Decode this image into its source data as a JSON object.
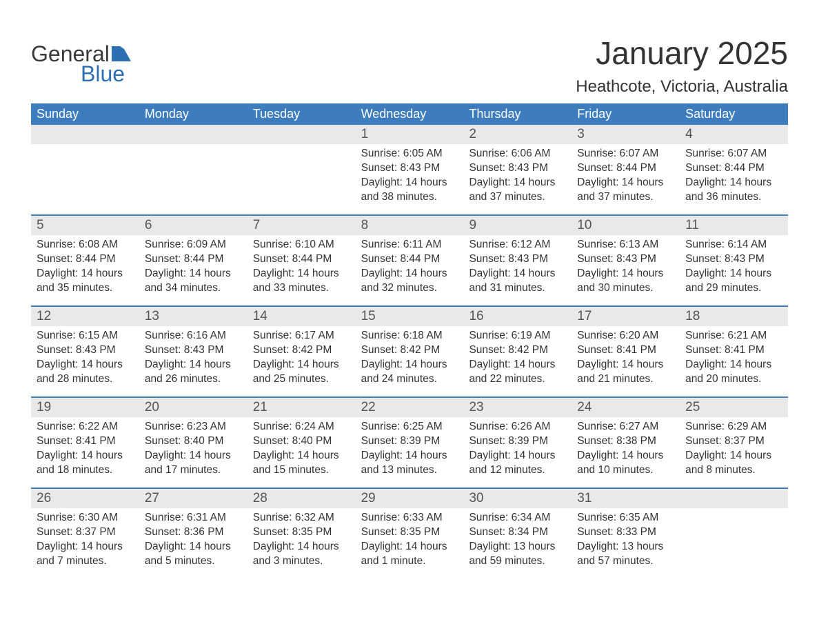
{
  "logo": {
    "text_general": "General",
    "text_blue": "Blue",
    "shape_color": "#2d6fb3",
    "general_color": "#3a3a3a"
  },
  "header": {
    "month_title": "January 2025",
    "location": "Heathcote, Victoria, Australia",
    "title_color": "#333333",
    "title_fontsize": 46,
    "location_fontsize": 24
  },
  "calendar": {
    "header_bg": "#3e7dbd",
    "header_text_color": "#ffffff",
    "daynum_bg": "#e9e9e9",
    "border_color": "#3e7dbd",
    "text_color": "#333333",
    "weekdays": [
      "Sunday",
      "Monday",
      "Tuesday",
      "Wednesday",
      "Thursday",
      "Friday",
      "Saturday"
    ],
    "weeks": [
      [
        {
          "empty": true
        },
        {
          "empty": true
        },
        {
          "empty": true
        },
        {
          "day": "1",
          "sunrise": "Sunrise: 6:05 AM",
          "sunset": "Sunset: 8:43 PM",
          "daylight1": "Daylight: 14 hours",
          "daylight2": "and 38 minutes."
        },
        {
          "day": "2",
          "sunrise": "Sunrise: 6:06 AM",
          "sunset": "Sunset: 8:43 PM",
          "daylight1": "Daylight: 14 hours",
          "daylight2": "and 37 minutes."
        },
        {
          "day": "3",
          "sunrise": "Sunrise: 6:07 AM",
          "sunset": "Sunset: 8:44 PM",
          "daylight1": "Daylight: 14 hours",
          "daylight2": "and 37 minutes."
        },
        {
          "day": "4",
          "sunrise": "Sunrise: 6:07 AM",
          "sunset": "Sunset: 8:44 PM",
          "daylight1": "Daylight: 14 hours",
          "daylight2": "and 36 minutes."
        }
      ],
      [
        {
          "day": "5",
          "sunrise": "Sunrise: 6:08 AM",
          "sunset": "Sunset: 8:44 PM",
          "daylight1": "Daylight: 14 hours",
          "daylight2": "and 35 minutes."
        },
        {
          "day": "6",
          "sunrise": "Sunrise: 6:09 AM",
          "sunset": "Sunset: 8:44 PM",
          "daylight1": "Daylight: 14 hours",
          "daylight2": "and 34 minutes."
        },
        {
          "day": "7",
          "sunrise": "Sunrise: 6:10 AM",
          "sunset": "Sunset: 8:44 PM",
          "daylight1": "Daylight: 14 hours",
          "daylight2": "and 33 minutes."
        },
        {
          "day": "8",
          "sunrise": "Sunrise: 6:11 AM",
          "sunset": "Sunset: 8:44 PM",
          "daylight1": "Daylight: 14 hours",
          "daylight2": "and 32 minutes."
        },
        {
          "day": "9",
          "sunrise": "Sunrise: 6:12 AM",
          "sunset": "Sunset: 8:43 PM",
          "daylight1": "Daylight: 14 hours",
          "daylight2": "and 31 minutes."
        },
        {
          "day": "10",
          "sunrise": "Sunrise: 6:13 AM",
          "sunset": "Sunset: 8:43 PM",
          "daylight1": "Daylight: 14 hours",
          "daylight2": "and 30 minutes."
        },
        {
          "day": "11",
          "sunrise": "Sunrise: 6:14 AM",
          "sunset": "Sunset: 8:43 PM",
          "daylight1": "Daylight: 14 hours",
          "daylight2": "and 29 minutes."
        }
      ],
      [
        {
          "day": "12",
          "sunrise": "Sunrise: 6:15 AM",
          "sunset": "Sunset: 8:43 PM",
          "daylight1": "Daylight: 14 hours",
          "daylight2": "and 28 minutes."
        },
        {
          "day": "13",
          "sunrise": "Sunrise: 6:16 AM",
          "sunset": "Sunset: 8:43 PM",
          "daylight1": "Daylight: 14 hours",
          "daylight2": "and 26 minutes."
        },
        {
          "day": "14",
          "sunrise": "Sunrise: 6:17 AM",
          "sunset": "Sunset: 8:42 PM",
          "daylight1": "Daylight: 14 hours",
          "daylight2": "and 25 minutes."
        },
        {
          "day": "15",
          "sunrise": "Sunrise: 6:18 AM",
          "sunset": "Sunset: 8:42 PM",
          "daylight1": "Daylight: 14 hours",
          "daylight2": "and 24 minutes."
        },
        {
          "day": "16",
          "sunrise": "Sunrise: 6:19 AM",
          "sunset": "Sunset: 8:42 PM",
          "daylight1": "Daylight: 14 hours",
          "daylight2": "and 22 minutes."
        },
        {
          "day": "17",
          "sunrise": "Sunrise: 6:20 AM",
          "sunset": "Sunset: 8:41 PM",
          "daylight1": "Daylight: 14 hours",
          "daylight2": "and 21 minutes."
        },
        {
          "day": "18",
          "sunrise": "Sunrise: 6:21 AM",
          "sunset": "Sunset: 8:41 PM",
          "daylight1": "Daylight: 14 hours",
          "daylight2": "and 20 minutes."
        }
      ],
      [
        {
          "day": "19",
          "sunrise": "Sunrise: 6:22 AM",
          "sunset": "Sunset: 8:41 PM",
          "daylight1": "Daylight: 14 hours",
          "daylight2": "and 18 minutes."
        },
        {
          "day": "20",
          "sunrise": "Sunrise: 6:23 AM",
          "sunset": "Sunset: 8:40 PM",
          "daylight1": "Daylight: 14 hours",
          "daylight2": "and 17 minutes."
        },
        {
          "day": "21",
          "sunrise": "Sunrise: 6:24 AM",
          "sunset": "Sunset: 8:40 PM",
          "daylight1": "Daylight: 14 hours",
          "daylight2": "and 15 minutes."
        },
        {
          "day": "22",
          "sunrise": "Sunrise: 6:25 AM",
          "sunset": "Sunset: 8:39 PM",
          "daylight1": "Daylight: 14 hours",
          "daylight2": "and 13 minutes."
        },
        {
          "day": "23",
          "sunrise": "Sunrise: 6:26 AM",
          "sunset": "Sunset: 8:39 PM",
          "daylight1": "Daylight: 14 hours",
          "daylight2": "and 12 minutes."
        },
        {
          "day": "24",
          "sunrise": "Sunrise: 6:27 AM",
          "sunset": "Sunset: 8:38 PM",
          "daylight1": "Daylight: 14 hours",
          "daylight2": "and 10 minutes."
        },
        {
          "day": "25",
          "sunrise": "Sunrise: 6:29 AM",
          "sunset": "Sunset: 8:37 PM",
          "daylight1": "Daylight: 14 hours",
          "daylight2": "and 8 minutes."
        }
      ],
      [
        {
          "day": "26",
          "sunrise": "Sunrise: 6:30 AM",
          "sunset": "Sunset: 8:37 PM",
          "daylight1": "Daylight: 14 hours",
          "daylight2": "and 7 minutes."
        },
        {
          "day": "27",
          "sunrise": "Sunrise: 6:31 AM",
          "sunset": "Sunset: 8:36 PM",
          "daylight1": "Daylight: 14 hours",
          "daylight2": "and 5 minutes."
        },
        {
          "day": "28",
          "sunrise": "Sunrise: 6:32 AM",
          "sunset": "Sunset: 8:35 PM",
          "daylight1": "Daylight: 14 hours",
          "daylight2": "and 3 minutes."
        },
        {
          "day": "29",
          "sunrise": "Sunrise: 6:33 AM",
          "sunset": "Sunset: 8:35 PM",
          "daylight1": "Daylight: 14 hours",
          "daylight2": "and 1 minute."
        },
        {
          "day": "30",
          "sunrise": "Sunrise: 6:34 AM",
          "sunset": "Sunset: 8:34 PM",
          "daylight1": "Daylight: 13 hours",
          "daylight2": "and 59 minutes."
        },
        {
          "day": "31",
          "sunrise": "Sunrise: 6:35 AM",
          "sunset": "Sunset: 8:33 PM",
          "daylight1": "Daylight: 13 hours",
          "daylight2": "and 57 minutes."
        },
        {
          "empty": true
        }
      ]
    ]
  }
}
